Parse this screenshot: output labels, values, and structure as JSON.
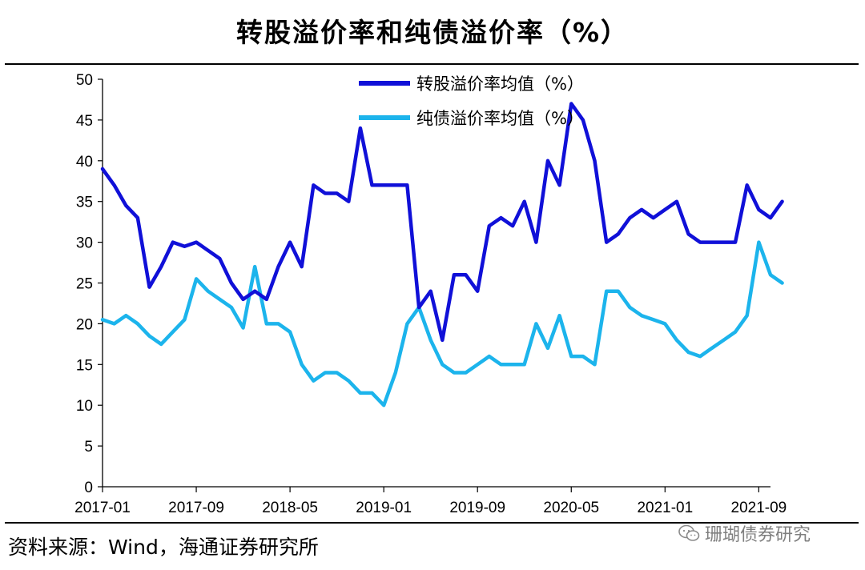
{
  "title": "转股溢价率和纯债溢价率（%）",
  "source": "资料来源：Wind，海通证券研究所",
  "watermark": "珊瑚债券研究",
  "chart_data": {
    "type": "line",
    "ylim": [
      0,
      50
    ],
    "yticks": [
      0,
      5,
      10,
      15,
      20,
      25,
      30,
      35,
      40,
      45,
      50
    ],
    "xlabels": [
      "2017-01",
      "2017-09",
      "2018-05",
      "2019-01",
      "2019-09",
      "2020-05",
      "2021-01",
      "2021-09"
    ],
    "x_range": [
      "2017-01",
      "2021-10"
    ],
    "legend_position": "top",
    "series": [
      {
        "name": "转股溢价率均值（%）",
        "color": "#1010d8",
        "points": [
          [
            "2017-01",
            39
          ],
          [
            "2017-02",
            37
          ],
          [
            "2017-03",
            34.5
          ],
          [
            "2017-04",
            33
          ],
          [
            "2017-05",
            24.5
          ],
          [
            "2017-06",
            27
          ],
          [
            "2017-07",
            30
          ],
          [
            "2017-08",
            29.5
          ],
          [
            "2017-09",
            30
          ],
          [
            "2017-10",
            29
          ],
          [
            "2017-11",
            28
          ],
          [
            "2017-12",
            25
          ],
          [
            "2018-01",
            23
          ],
          [
            "2018-02",
            24
          ],
          [
            "2018-03",
            23
          ],
          [
            "2018-04",
            27
          ],
          [
            "2018-05",
            30
          ],
          [
            "2018-06",
            27
          ],
          [
            "2018-07",
            37
          ],
          [
            "2018-08",
            36
          ],
          [
            "2018-09",
            36
          ],
          [
            "2018-10",
            35
          ],
          [
            "2018-11",
            44
          ],
          [
            "2018-12",
            37
          ],
          [
            "2019-01",
            37
          ],
          [
            "2019-02",
            37
          ],
          [
            "2019-03",
            37
          ],
          [
            "2019-04",
            22
          ],
          [
            "2019-05",
            24
          ],
          [
            "2019-06",
            18
          ],
          [
            "2019-07",
            26
          ],
          [
            "2019-08",
            26
          ],
          [
            "2019-09",
            24
          ],
          [
            "2019-10",
            32
          ],
          [
            "2019-11",
            33
          ],
          [
            "2019-12",
            32
          ],
          [
            "2020-01",
            35
          ],
          [
            "2020-02",
            30
          ],
          [
            "2020-03",
            40
          ],
          [
            "2020-04",
            37
          ],
          [
            "2020-05",
            47
          ],
          [
            "2020-06",
            45
          ],
          [
            "2020-07",
            40
          ],
          [
            "2020-08",
            30
          ],
          [
            "2020-09",
            31
          ],
          [
            "2020-10",
            33
          ],
          [
            "2020-11",
            34
          ],
          [
            "2020-12",
            33
          ],
          [
            "2021-01",
            34
          ],
          [
            "2021-02",
            35
          ],
          [
            "2021-03",
            31
          ],
          [
            "2021-04",
            30
          ],
          [
            "2021-05",
            30
          ],
          [
            "2021-06",
            30
          ],
          [
            "2021-07",
            30
          ],
          [
            "2021-08",
            37
          ],
          [
            "2021-09",
            34
          ],
          [
            "2021-10",
            33
          ],
          [
            "2021-11",
            35
          ]
        ]
      },
      {
        "name": "纯债溢价率均值（%）",
        "color": "#1cb4ec",
        "points": [
          [
            "2017-01",
            20.5
          ],
          [
            "2017-02",
            20
          ],
          [
            "2017-03",
            21
          ],
          [
            "2017-04",
            20
          ],
          [
            "2017-05",
            18.5
          ],
          [
            "2017-06",
            17.5
          ],
          [
            "2017-07",
            19
          ],
          [
            "2017-08",
            20.5
          ],
          [
            "2017-09",
            25.5
          ],
          [
            "2017-10",
            24
          ],
          [
            "2017-11",
            23
          ],
          [
            "2017-12",
            22
          ],
          [
            "2018-01",
            19.5
          ],
          [
            "2018-02",
            27
          ],
          [
            "2018-03",
            20
          ],
          [
            "2018-04",
            20
          ],
          [
            "2018-05",
            19
          ],
          [
            "2018-06",
            15
          ],
          [
            "2018-07",
            13
          ],
          [
            "2018-08",
            14
          ],
          [
            "2018-09",
            14
          ],
          [
            "2018-10",
            13
          ],
          [
            "2018-11",
            11.5
          ],
          [
            "2018-12",
            11.5
          ],
          [
            "2019-01",
            10
          ],
          [
            "2019-02",
            14
          ],
          [
            "2019-03",
            20
          ],
          [
            "2019-04",
            22
          ],
          [
            "2019-05",
            18
          ],
          [
            "2019-06",
            15
          ],
          [
            "2019-07",
            14
          ],
          [
            "2019-08",
            14
          ],
          [
            "2019-09",
            15
          ],
          [
            "2019-10",
            16
          ],
          [
            "2019-11",
            15
          ],
          [
            "2019-12",
            15
          ],
          [
            "2020-01",
            15
          ],
          [
            "2020-02",
            20
          ],
          [
            "2020-03",
            17
          ],
          [
            "2020-04",
            21
          ],
          [
            "2020-05",
            16
          ],
          [
            "2020-06",
            16
          ],
          [
            "2020-07",
            15
          ],
          [
            "2020-08",
            24
          ],
          [
            "2020-09",
            24
          ],
          [
            "2020-10",
            22
          ],
          [
            "2020-11",
            21
          ],
          [
            "2020-12",
            20.5
          ],
          [
            "2021-01",
            20
          ],
          [
            "2021-02",
            18
          ],
          [
            "2021-03",
            16.5
          ],
          [
            "2021-04",
            16
          ],
          [
            "2021-05",
            17
          ],
          [
            "2021-06",
            18
          ],
          [
            "2021-07",
            19
          ],
          [
            "2021-08",
            21
          ],
          [
            "2021-09",
            30
          ],
          [
            "2021-10",
            26
          ],
          [
            "2021-11",
            25
          ]
        ]
      }
    ]
  }
}
